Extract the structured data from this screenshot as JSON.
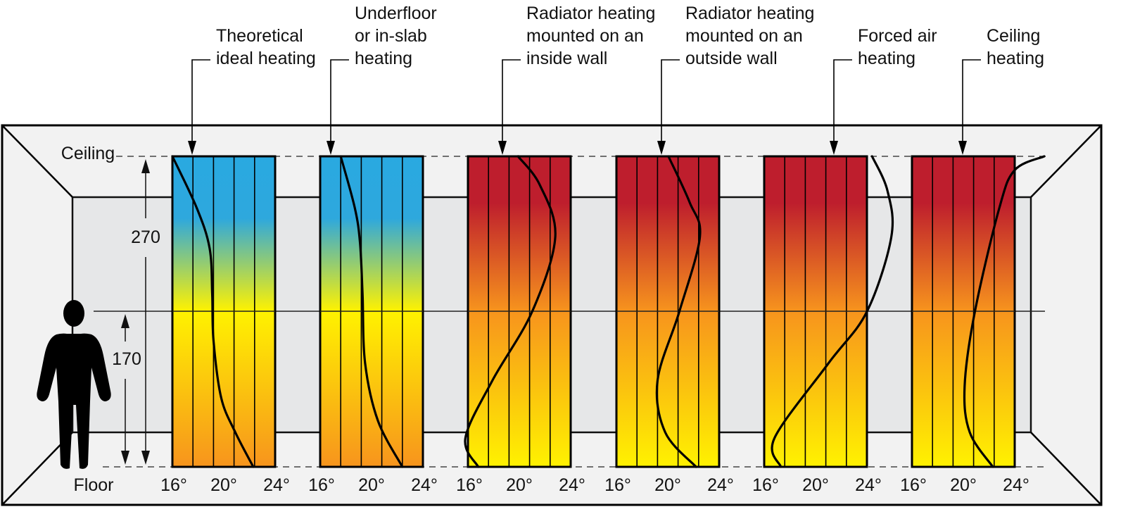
{
  "room": {
    "ceiling_label": "Ceiling",
    "floor_label": "Floor",
    "height_ceiling": "270",
    "height_head": "170"
  },
  "scale": {
    "min": 16,
    "max": 24,
    "ticks": [
      "16°",
      "20°",
      "24°"
    ],
    "height_max_cm": 270,
    "mid_height_cm": 170
  },
  "colors": {
    "cold": "#29a9e1",
    "warm_yellow": "#fff200",
    "orange": "#f7941d",
    "hot": "#be1e2d",
    "wall": "#f2f2f2",
    "back_wall": "#e6e7e8"
  },
  "panels": [
    {
      "label_lines": [
        "Theoretical",
        "ideal heating"
      ],
      "gradient": "cold",
      "profile": [
        [
          16,
          270
        ],
        [
          17.9,
          225
        ],
        [
          18.9,
          190
        ],
        [
          19.1,
          150
        ],
        [
          19.2,
          110
        ],
        [
          19.8,
          60
        ],
        [
          20.9,
          30
        ],
        [
          22.3,
          0
        ]
      ]
    },
    {
      "label_lines": [
        "Underfloor",
        "or in-slab",
        "heating"
      ],
      "gradient": "cold",
      "profile": [
        [
          17.6,
          270
        ],
        [
          18.7,
          225
        ],
        [
          19.1,
          195
        ],
        [
          19.3,
          150
        ],
        [
          19.5,
          90
        ],
        [
          20.5,
          40
        ],
        [
          22.4,
          0
        ]
      ]
    },
    {
      "label_lines": [
        "Radiator heating",
        "mounted on an",
        "inside wall"
      ],
      "gradient": "hot",
      "profile": [
        [
          19.9,
          270
        ],
        [
          21.6,
          245
        ],
        [
          22.8,
          200
        ],
        [
          21.0,
          135
        ],
        [
          17.9,
          75
        ],
        [
          15.8,
          25
        ],
        [
          16.8,
          0
        ]
      ]
    },
    {
      "label_lines": [
        "Radiator heating",
        "mounted on an",
        "outside wall"
      ],
      "gradient": "hot",
      "profile": [
        [
          20.05,
          270
        ],
        [
          21.7,
          230
        ],
        [
          22.5,
          200
        ],
        [
          20.9,
          135
        ],
        [
          19.2,
          75
        ],
        [
          19.8,
          30
        ],
        [
          22.2,
          0
        ]
      ]
    },
    {
      "label_lines": [
        "Forced air",
        "heating"
      ],
      "gradient": "hot",
      "profile": [
        [
          24.4,
          270
        ],
        [
          25.6,
          240
        ],
        [
          25.9,
          200
        ],
        [
          24.0,
          135
        ],
        [
          21.0,
          90
        ],
        [
          16.8,
          25
        ],
        [
          17.3,
          0
        ]
      ]
    },
    {
      "label_lines": [
        "Ceiling",
        "heating"
      ],
      "gradient": "hot",
      "profile": [
        [
          26.3,
          270
        ],
        [
          24.0,
          258
        ],
        [
          22.8,
          225
        ],
        [
          20.9,
          135
        ],
        [
          20.1,
          70
        ],
        [
          20.5,
          30
        ],
        [
          22.3,
          0
        ]
      ]
    }
  ]
}
